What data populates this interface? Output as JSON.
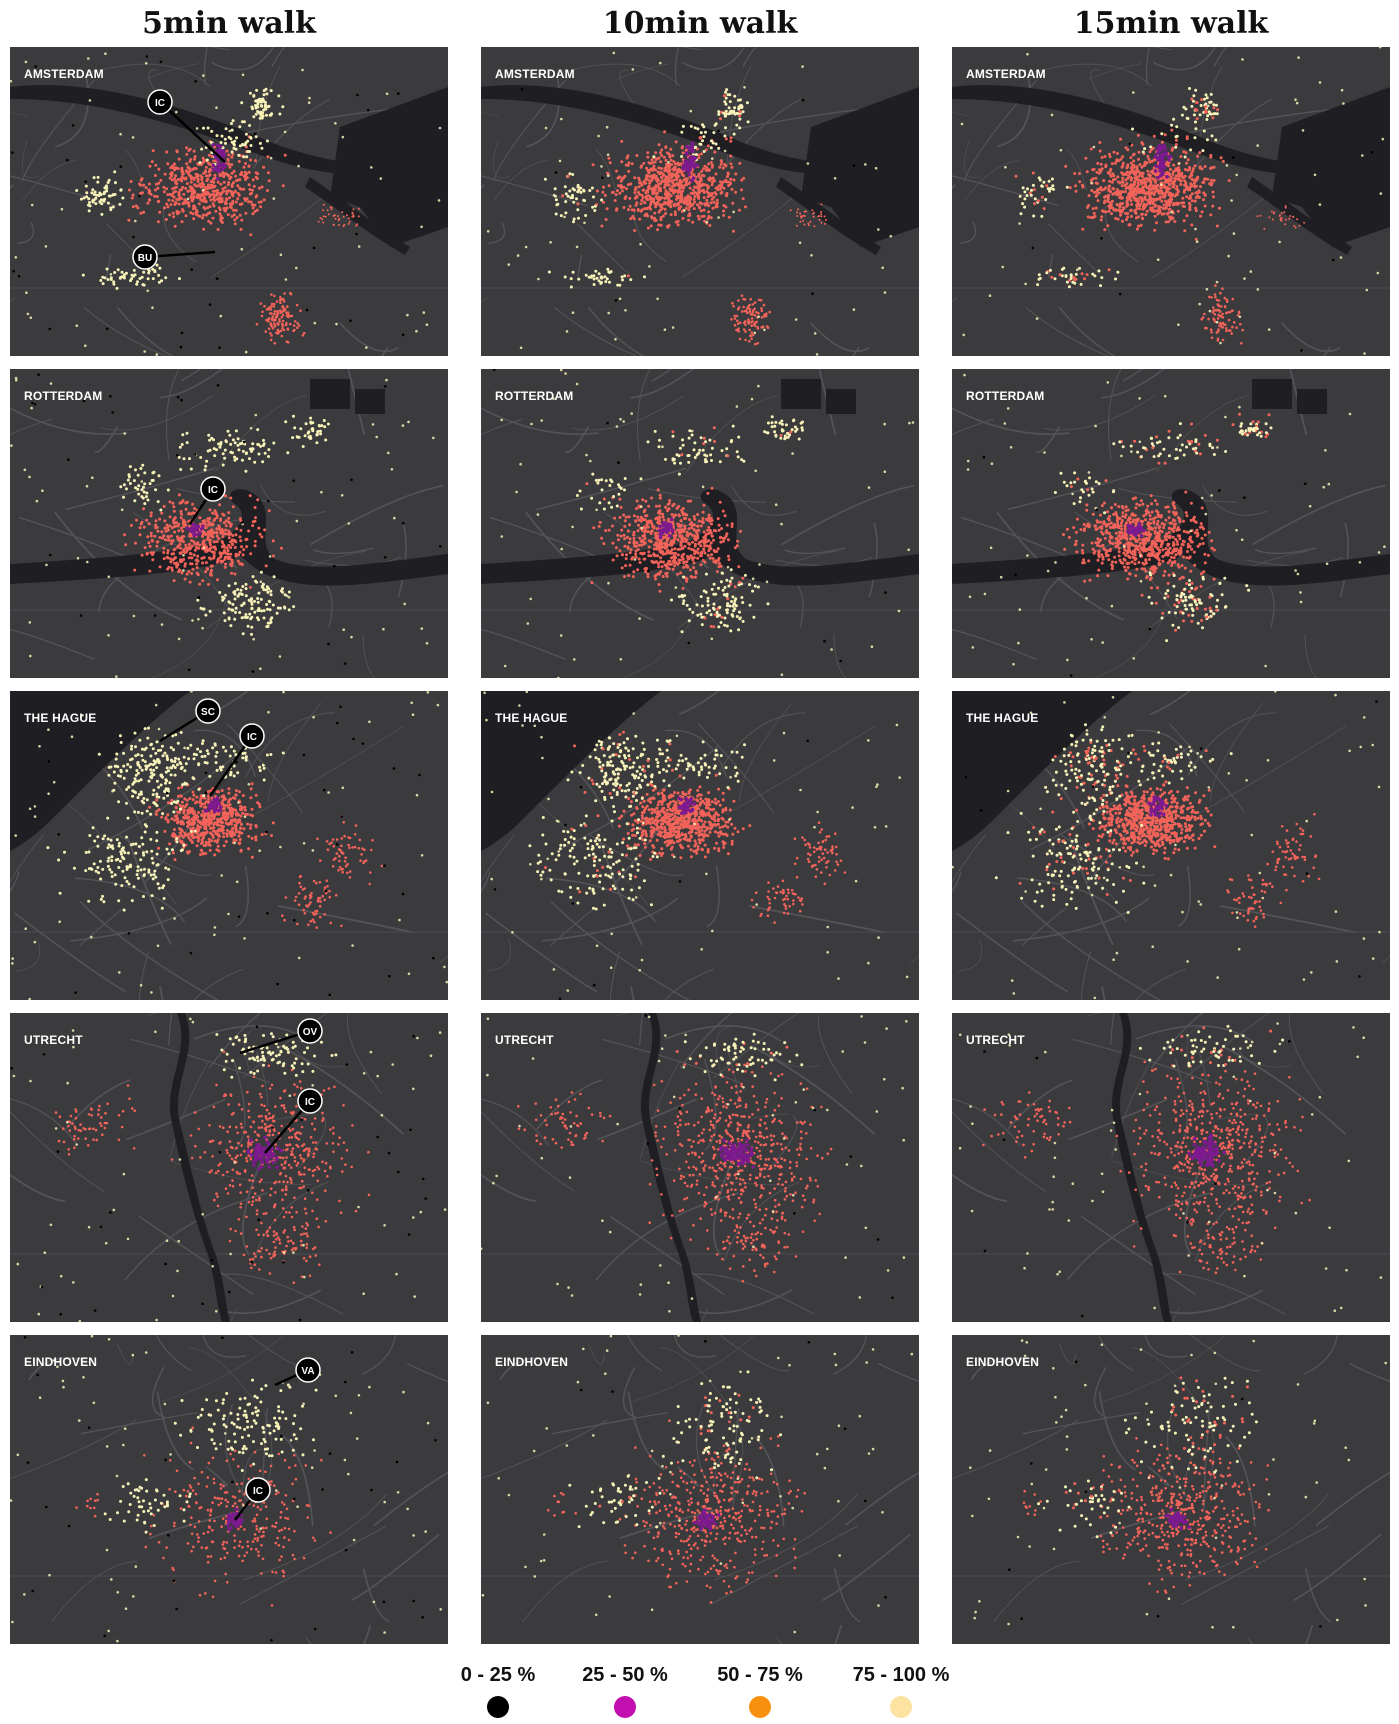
{
  "column_headers": [
    "5min walk",
    "10min walk",
    "15min walk"
  ],
  "cities": [
    "AMSTERDAM",
    "ROTTERDAM",
    "THE HAGUE",
    "UTRECHT",
    "EINDHOVEN"
  ],
  "station_labels": {
    "amsterdam": [
      "IC",
      "BU"
    ],
    "rotterdam": [
      "IC"
    ],
    "the_hague": [
      "SC",
      "IC"
    ],
    "utrecht": [
      "OV",
      "IC"
    ],
    "eindhoven": [
      "VA",
      "IC"
    ]
  },
  "legend": [
    {
      "label": "0 - 25 %",
      "color": "#000000"
    },
    {
      "label": "25 - 50 %",
      "color": "#c20fb0"
    },
    {
      "label": "50 - 75 %",
      "color": "#f7900f"
    },
    {
      "label": "75 - 100 %",
      "color": "#fde3a0"
    }
  ],
  "colors": {
    "background": "#3b3b3d",
    "water": "#1f1e22",
    "coral": "#f2635a",
    "cream": "#f7f2b8",
    "purple": "#7d1a8f",
    "black": "#000000"
  }
}
